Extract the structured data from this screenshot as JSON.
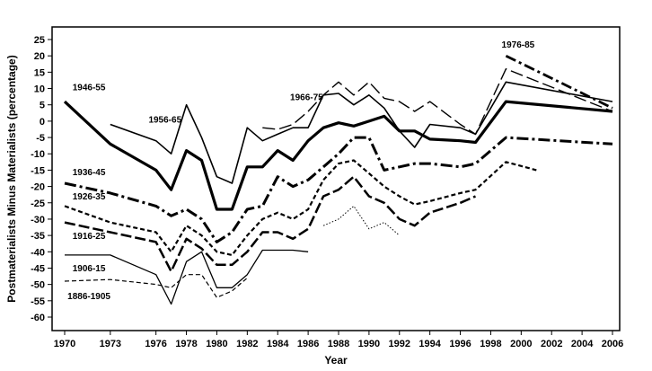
{
  "chart_data": {
    "type": "line",
    "title": "",
    "xlabel": "Year",
    "ylabel": "Postmaterialists Minus Materialists (percentage)",
    "xlim": [
      1970,
      2006
    ],
    "ylim": [
      -65,
      30
    ],
    "x_ticks": [
      1970,
      1973,
      1976,
      1978,
      1980,
      1982,
      1984,
      1986,
      1988,
      1990,
      1992,
      1994,
      1996,
      1998,
      2000,
      2002,
      2004,
      2006
    ],
    "y_ticks": [
      25,
      20,
      15,
      10,
      5,
      0,
      -5,
      -10,
      -15,
      -20,
      -25,
      -30,
      -35,
      -40,
      -45,
      -50,
      -55,
      -60
    ],
    "series": [
      {
        "name": "1886-1905",
        "style": "dashed-dotted-thin",
        "x": [
          1970,
          1973,
          1976,
          1977,
          1978,
          1979,
          1980,
          1981,
          1982
        ],
        "y": [
          -49,
          -48.5,
          -50,
          -51,
          -47,
          -47,
          -54,
          -52,
          -48
        ]
      },
      {
        "name": "1886-1905 (cont.)",
        "style": "dotted",
        "x": [
          1987,
          1988,
          1989,
          1990,
          1991,
          1992
        ],
        "y": [
          -32,
          -30,
          -26,
          -33,
          -31,
          -35
        ]
      },
      {
        "name": "1906-15",
        "style": "solid-thin",
        "x": [
          1970,
          1973,
          1976,
          1977,
          1978,
          1979,
          1980,
          1981,
          1982,
          1983,
          1984,
          1985,
          1986
        ],
        "y": [
          -41,
          -41,
          -47,
          -56,
          -43,
          -40,
          -51,
          -51,
          -47,
          -39.5,
          -39.5,
          -39.5,
          -40
        ]
      },
      {
        "name": "1916-25",
        "style": "long-dash",
        "x": [
          1970,
          1973,
          1976,
          1977,
          1978,
          1979,
          1980,
          1981,
          1982,
          1983,
          1984,
          1985,
          1986,
          1987,
          1988,
          1989,
          1990,
          1991,
          1992,
          1993,
          1994,
          1996,
          1997
        ],
        "y": [
          -31,
          -34,
          -37,
          -46,
          -36,
          -39,
          -44,
          -44,
          -40,
          -34,
          -34,
          -36,
          -33,
          -23,
          -21,
          -17,
          -23,
          -25,
          -30,
          -32,
          -28,
          -25,
          -23
        ]
      },
      {
        "name": "1926-35",
        "style": "short-dash",
        "x": [
          1970,
          1973,
          1976,
          1977,
          1978,
          1979,
          1980,
          1981,
          1982,
          1983,
          1984,
          1985,
          1986,
          1987,
          1988,
          1989,
          1990,
          1991,
          1992,
          1993,
          1994,
          1996,
          1997,
          1999,
          2001
        ],
        "y": [
          -26,
          -31,
          -34,
          -40,
          -32,
          -35,
          -40,
          -41,
          -35,
          -30,
          -28,
          -30,
          -27,
          -18,
          -13,
          -12,
          -16,
          -20,
          -23,
          -25.5,
          -24.5,
          -22,
          -21,
          -12.5,
          -15
        ]
      },
      {
        "name": "1936-45",
        "style": "dash-dot-heavy",
        "x": [
          1970,
          1973,
          1976,
          1977,
          1978,
          1979,
          1980,
          1981,
          1982,
          1983,
          1984,
          1985,
          1986,
          1987,
          1988,
          1989,
          1990,
          1991,
          1992,
          1993,
          1994,
          1996,
          1997,
          1999,
          2006
        ],
        "y": [
          -19,
          -22,
          -26,
          -29,
          -27,
          -30,
          -37,
          -34,
          -27,
          -26,
          -17,
          -20,
          -18,
          -14,
          -10,
          -5,
          -5,
          -15,
          -14,
          -13,
          -13,
          -14,
          -13,
          -5,
          -7
        ]
      },
      {
        "name": "1946-55",
        "style": "solid-heavy",
        "x": [
          1970,
          1973,
          1976,
          1977,
          1978,
          1979,
          1980,
          1981,
          1982,
          1983,
          1984,
          1985,
          1986,
          1987,
          1988,
          1989,
          1990,
          1991,
          1992,
          1993,
          1994,
          1996,
          1997,
          1999,
          2006
        ],
        "y": [
          6,
          -7,
          -15,
          -21,
          -9,
          -12,
          -27,
          -27,
          -14,
          -14,
          -9,
          -12,
          -6,
          -2,
          -0.5,
          -1.5,
          0,
          1.5,
          -3,
          -3,
          -5.5,
          -6,
          -6.5,
          6,
          3
        ]
      },
      {
        "name": "1956-65",
        "style": "solid-medium",
        "x": [
          1973,
          1976,
          1977,
          1978,
          1979,
          1980,
          1981,
          1982,
          1983,
          1984,
          1985,
          1986,
          1987,
          1988,
          1989,
          1990,
          1991,
          1992,
          1993,
          1994,
          1996,
          1997,
          1999,
          2006
        ],
        "y": [
          -1,
          -6,
          -10,
          5,
          -5,
          -17,
          -19,
          -2,
          -6,
          -4,
          -2,
          -2,
          8,
          8.5,
          5,
          8,
          4,
          -3,
          -8,
          -1,
          -2,
          -4,
          12,
          6
        ]
      },
      {
        "name": "1966-75",
        "style": "long-dash-thin",
        "x": [
          1983,
          1984,
          1985,
          1986,
          1987,
          1988,
          1989,
          1990,
          1991,
          1992,
          1993,
          1994,
          1996,
          1997,
          1999,
          2006
        ],
        "y": [
          -2,
          -2.5,
          -1,
          3,
          8,
          12,
          8,
          12,
          7,
          6,
          3,
          6,
          -1,
          -4,
          16,
          3
        ]
      },
      {
        "name": "1976-85",
        "style": "dash-dot-bold",
        "x": [
          1999,
          2006
        ],
        "y": [
          20,
          4
        ]
      }
    ],
    "annotations": [
      {
        "text": "1946-55",
        "series": "1946-55"
      },
      {
        "text": "1956-65",
        "series": "1956-65"
      },
      {
        "text": "1966-75",
        "series": "1966-75"
      },
      {
        "text": "1976-85",
        "series": "1976-85"
      },
      {
        "text": "1936-45",
        "series": "1936-45"
      },
      {
        "text": "1926-35",
        "series": "1926-35"
      },
      {
        "text": "1916-25",
        "series": "1916-25"
      },
      {
        "text": "1906-15",
        "series": "1906-15"
      },
      {
        "text": "1886-1905",
        "series": "1886-1905"
      }
    ]
  }
}
